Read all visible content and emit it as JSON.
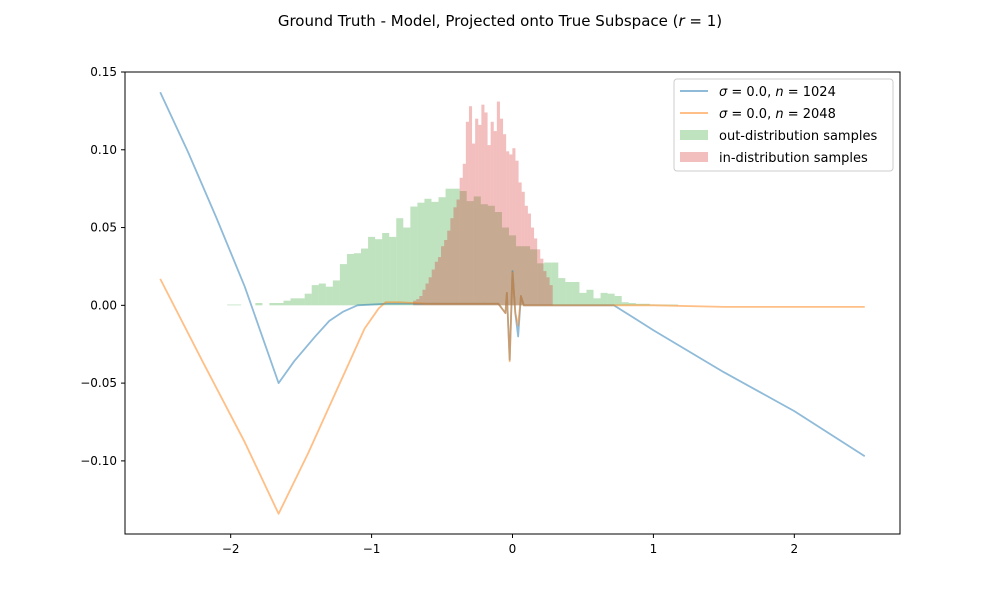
{
  "chart_data": {
    "type": "line",
    "title_parts": [
      {
        "text": "Ground Truth - Model, Projected onto True Subspace (",
        "italic": false
      },
      {
        "text": "r",
        "italic": true
      },
      {
        "text": " = 1)",
        "italic": false
      }
    ],
    "xlabel": "",
    "ylabel": "",
    "xlim": [
      -2.75,
      2.75
    ],
    "ylim": [
      -0.147,
      0.15
    ],
    "xticks": [
      -2,
      -1,
      0,
      1,
      2
    ],
    "xtick_labels": [
      "−2",
      "−1",
      "0",
      "1",
      "2"
    ],
    "yticks": [
      -0.1,
      -0.05,
      0.0,
      0.05,
      0.1,
      0.15
    ],
    "ytick_labels": [
      "−0.10",
      "−0.05",
      "0.00",
      "0.05",
      "0.10",
      "0.15"
    ],
    "grid": false,
    "legend_position": "top-right",
    "series": [
      {
        "name_parts": [
          {
            "text": "σ",
            "italic": true
          },
          {
            "text": " = 0.0, ",
            "italic": false
          },
          {
            "text": "n",
            "italic": true
          },
          {
            "text": " = 1024",
            "italic": false
          }
        ],
        "color": "#1f77b4",
        "points": [
          [
            -2.5,
            0.137
          ],
          [
            -2.3,
            0.098
          ],
          [
            -2.1,
            0.056
          ],
          [
            -1.9,
            0.012
          ],
          [
            -1.66,
            -0.05
          ],
          [
            -1.55,
            -0.036
          ],
          [
            -1.4,
            -0.02
          ],
          [
            -1.3,
            -0.01
          ],
          [
            -1.2,
            -0.004
          ],
          [
            -1.1,
            0.0
          ],
          [
            -0.9,
            0.001
          ],
          [
            -0.5,
            0.001
          ],
          [
            -0.1,
            0.001
          ],
          [
            -0.05,
            -0.005
          ],
          [
            -0.04,
            0.008
          ],
          [
            -0.02,
            -0.035
          ],
          [
            0.0,
            0.022
          ],
          [
            0.02,
            -0.005
          ],
          [
            0.04,
            -0.02
          ],
          [
            0.06,
            0.006
          ],
          [
            0.08,
            0.0
          ],
          [
            0.2,
            0.0
          ],
          [
            0.5,
            0.0
          ],
          [
            0.72,
            0.0
          ],
          [
            1.0,
            -0.016
          ],
          [
            1.5,
            -0.043
          ],
          [
            2.0,
            -0.068
          ],
          [
            2.5,
            -0.097
          ]
        ]
      },
      {
        "name_parts": [
          {
            "text": "σ",
            "italic": true
          },
          {
            "text": " = 0.0, ",
            "italic": false
          },
          {
            "text": "n",
            "italic": true
          },
          {
            "text": " = 2048",
            "italic": false
          }
        ],
        "color": "#ff7f0e",
        "points": [
          [
            -2.5,
            0.017
          ],
          [
            -2.2,
            -0.036
          ],
          [
            -1.9,
            -0.088
          ],
          [
            -1.66,
            -0.134
          ],
          [
            -1.45,
            -0.095
          ],
          [
            -1.2,
            -0.045
          ],
          [
            -1.05,
            -0.015
          ],
          [
            -0.95,
            -0.002
          ],
          [
            -0.9,
            0.002
          ],
          [
            -0.8,
            0.002
          ],
          [
            -0.6,
            0.001
          ],
          [
            -0.1,
            0.001
          ],
          [
            -0.05,
            -0.005
          ],
          [
            -0.04,
            0.008
          ],
          [
            -0.02,
            -0.036
          ],
          [
            0.0,
            0.021
          ],
          [
            0.02,
            -0.005
          ],
          [
            0.04,
            -0.013
          ],
          [
            0.06,
            0.006
          ],
          [
            0.08,
            0.0
          ],
          [
            0.5,
            0.0
          ],
          [
            1.0,
            0.0
          ],
          [
            1.5,
            -0.001
          ],
          [
            2.0,
            -0.001
          ],
          [
            2.5,
            -0.001
          ]
        ]
      }
    ],
    "histograms": [
      {
        "name": "out-distribution samples",
        "color": "#2ca02c",
        "bin_start": -2.025,
        "bin_width": 0.05,
        "values": [
          0.0005,
          0.0005,
          0.0,
          0.0,
          0.0015,
          0.0,
          0.0015,
          0.0015,
          0.003,
          0.0045,
          0.0045,
          0.0075,
          0.013,
          0.014,
          0.012,
          0.016,
          0.0265,
          0.033,
          0.0335,
          0.0365,
          0.044,
          0.0425,
          0.0465,
          0.044,
          0.056,
          0.05,
          0.0635,
          0.066,
          0.0685,
          0.0665,
          0.0695,
          0.075,
          0.075,
          0.0735,
          0.067,
          0.07,
          0.065,
          0.064,
          0.06,
          0.05,
          0.045,
          0.038,
          0.038,
          0.036,
          0.027,
          0.0275,
          0.0275,
          0.0175,
          0.015,
          0.015,
          0.008,
          0.01,
          0.0045,
          0.008,
          0.0075,
          0.006,
          0.002,
          0.0015,
          0.001,
          0.001,
          0.0005,
          0.0005,
          0.0005,
          0.0005
        ]
      },
      {
        "name": "in-distribution samples",
        "color": "#d62728",
        "bin_start": -0.705,
        "bin_width": 0.022,
        "values": [
          0.003,
          0.004,
          0.006,
          0.01,
          0.014,
          0.018,
          0.023,
          0.028,
          0.031,
          0.038,
          0.042,
          0.048,
          0.056,
          0.063,
          0.068,
          0.082,
          0.091,
          0.118,
          0.128,
          0.104,
          0.12,
          0.116,
          0.129,
          0.124,
          0.103,
          0.118,
          0.112,
          0.131,
          0.12,
          0.11,
          0.099,
          0.097,
          0.101,
          0.093,
          0.079,
          0.073,
          0.064,
          0.059,
          0.05,
          0.043,
          0.036,
          0.03,
          0.022,
          0.018,
          0.013
        ]
      }
    ]
  }
}
